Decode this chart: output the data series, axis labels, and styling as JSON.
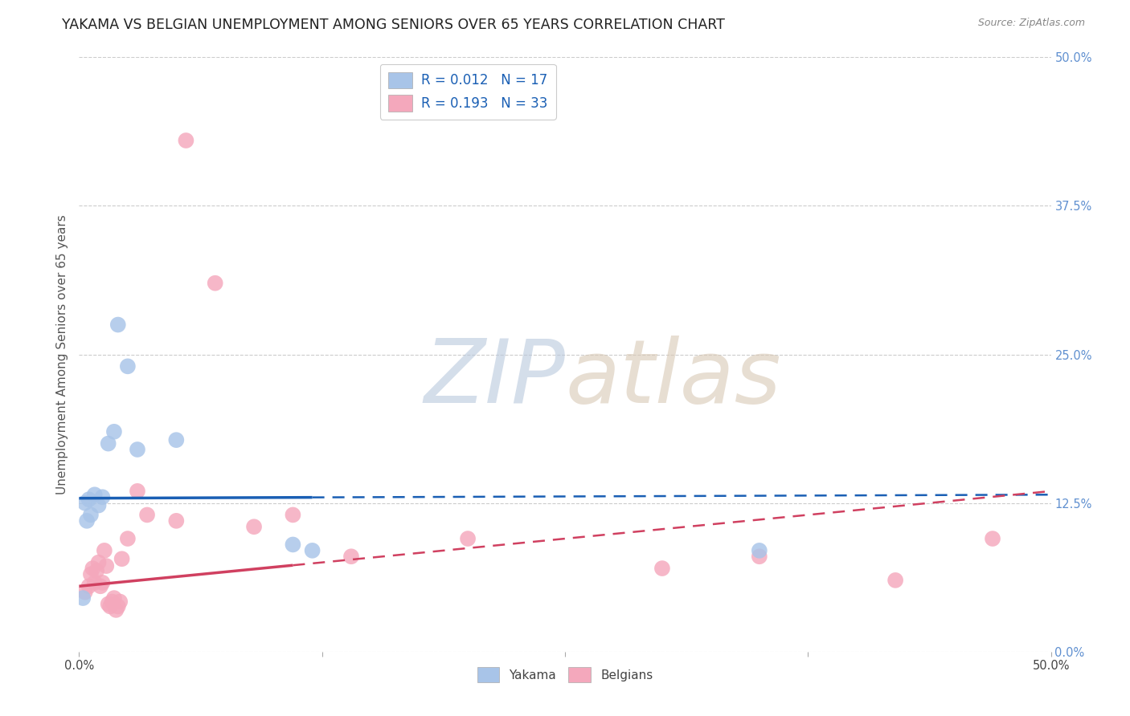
{
  "title": "YAKAMA VS BELGIAN UNEMPLOYMENT AMONG SENIORS OVER 65 YEARS CORRELATION CHART",
  "source": "Source: ZipAtlas.com",
  "ylabel": "Unemployment Among Seniors over 65 years",
  "ytick_labels": [
    "0.0%",
    "12.5%",
    "25.0%",
    "37.5%",
    "50.0%"
  ],
  "ytick_values": [
    0,
    12.5,
    25.0,
    37.5,
    50.0
  ],
  "xlim": [
    0,
    50
  ],
  "ylim": [
    0,
    50
  ],
  "yakama_color": "#a8c4e8",
  "belgian_color": "#f4a8bc",
  "trend_yakama_color": "#1a5fb4",
  "trend_belgian_color": "#d04060",
  "grid_color": "#cccccc",
  "background_color": "#ffffff",
  "title_fontsize": 12.5,
  "axis_label_fontsize": 11,
  "tick_fontsize": 10.5,
  "right_tick_color": "#6090d0",
  "yakama_points": [
    [
      0.3,
      12.5
    ],
    [
      0.5,
      12.8
    ],
    [
      0.8,
      13.2
    ],
    [
      1.0,
      12.3
    ],
    [
      1.2,
      13.0
    ],
    [
      0.4,
      11.0
    ],
    [
      0.6,
      11.5
    ],
    [
      1.5,
      17.5
    ],
    [
      2.0,
      27.5
    ],
    [
      2.5,
      24.0
    ],
    [
      1.8,
      18.5
    ],
    [
      3.0,
      17.0
    ],
    [
      5.0,
      17.8
    ],
    [
      11.0,
      9.0
    ],
    [
      12.0,
      8.5
    ],
    [
      0.2,
      4.5
    ],
    [
      35.0,
      8.5
    ]
  ],
  "belgian_points": [
    [
      0.3,
      5.0
    ],
    [
      0.5,
      5.5
    ],
    [
      0.6,
      6.5
    ],
    [
      0.7,
      7.0
    ],
    [
      0.8,
      5.8
    ],
    [
      0.9,
      6.8
    ],
    [
      1.0,
      7.5
    ],
    [
      1.1,
      5.5
    ],
    [
      1.2,
      5.8
    ],
    [
      1.3,
      8.5
    ],
    [
      1.4,
      7.2
    ],
    [
      1.5,
      4.0
    ],
    [
      1.6,
      3.8
    ],
    [
      1.7,
      4.2
    ],
    [
      1.8,
      4.5
    ],
    [
      1.9,
      3.5
    ],
    [
      2.0,
      3.8
    ],
    [
      2.1,
      4.2
    ],
    [
      2.2,
      7.8
    ],
    [
      2.5,
      9.5
    ],
    [
      3.0,
      13.5
    ],
    [
      3.5,
      11.5
    ],
    [
      5.0,
      11.0
    ],
    [
      5.5,
      43.0
    ],
    [
      7.0,
      31.0
    ],
    [
      9.0,
      10.5
    ],
    [
      11.0,
      11.5
    ],
    [
      14.0,
      8.0
    ],
    [
      20.0,
      9.5
    ],
    [
      30.0,
      7.0
    ],
    [
      35.0,
      8.0
    ],
    [
      42.0,
      6.0
    ],
    [
      47.0,
      9.5
    ]
  ],
  "yakama_trend_start_x": 0,
  "yakama_trend_end_x": 50,
  "yakama_trend_start_y": 12.9,
  "yakama_trend_end_y": 13.2,
  "yakama_solid_end_x": 12.0,
  "belgian_trend_start_x": 0,
  "belgian_trend_end_x": 50,
  "belgian_trend_start_y": 5.5,
  "belgian_trend_end_y": 13.5,
  "belgian_solid_end_x": 11.0
}
